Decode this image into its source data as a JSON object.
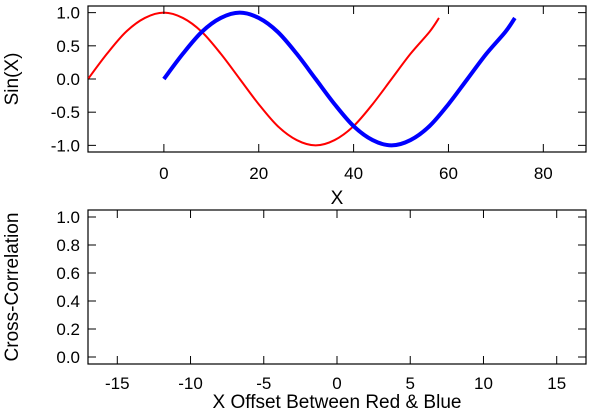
{
  "chart_data": [
    {
      "type": "line",
      "xlabel": "X",
      "ylabel": "Sin(X)",
      "xlim": [
        -16,
        89
      ],
      "ylim": [
        -1.1,
        1.1
      ],
      "xticks": [
        0,
        20,
        40,
        60,
        80
      ],
      "yticks": [
        -1.0,
        -0.5,
        0.0,
        0.5,
        1.0
      ],
      "xtick_labels": [
        "0",
        "20",
        "40",
        "60",
        "80"
      ],
      "ytick_labels": [
        "-1.0",
        "-0.5",
        "0.0",
        "0.5",
        "1.0"
      ],
      "grid": false,
      "series": [
        {
          "color": "#ff0000",
          "line_width": "thin",
          "x": [
            -16,
            -12,
            -8,
            -4,
            0,
            4,
            8,
            12,
            16,
            20,
            24,
            28,
            32,
            36,
            40,
            44,
            48,
            52,
            56,
            58
          ],
          "y": [
            0.0,
            0.38,
            0.71,
            0.92,
            1.0,
            0.92,
            0.71,
            0.38,
            0.0,
            -0.38,
            -0.71,
            -0.92,
            -1.0,
            -0.92,
            -0.71,
            -0.38,
            0.0,
            0.38,
            0.71,
            0.92
          ]
        },
        {
          "color": "#0000ff",
          "line_width": "thick",
          "x": [
            0,
            4,
            8,
            12,
            16,
            20,
            24,
            28,
            32,
            36,
            40,
            44,
            48,
            52,
            56,
            60,
            64,
            68,
            72,
            74
          ],
          "y": [
            0.0,
            0.38,
            0.71,
            0.92,
            1.0,
            0.92,
            0.71,
            0.38,
            0.0,
            -0.38,
            -0.71,
            -0.92,
            -1.0,
            -0.92,
            -0.71,
            -0.38,
            0.0,
            0.38,
            0.71,
            0.92
          ]
        }
      ]
    },
    {
      "type": "line",
      "xlabel": "X Offset Between Red & Blue",
      "ylabel": "Cross-Correlation",
      "xlim": [
        -17,
        17
      ],
      "ylim": [
        -0.05,
        1.05
      ],
      "xticks": [
        -15,
        -10,
        -5,
        0,
        5,
        10,
        15
      ],
      "yticks": [
        0.0,
        0.2,
        0.4,
        0.6,
        0.8,
        1.0
      ],
      "xtick_labels": [
        "-15",
        "-10",
        "-5",
        "0",
        "5",
        "10",
        "15"
      ],
      "ytick_labels": [
        "0.0",
        "0.2",
        "0.4",
        "0.6",
        "0.8",
        "1.0"
      ],
      "grid": false,
      "series": []
    }
  ]
}
